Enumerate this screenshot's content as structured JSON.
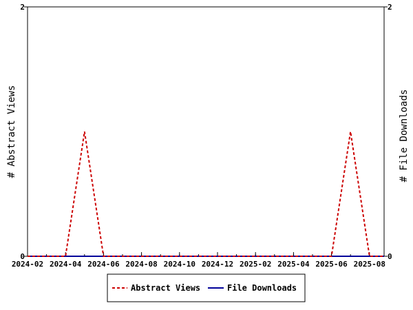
{
  "chart_data": {
    "type": "line",
    "x_ticks": [
      "2024-02",
      "2024-04",
      "2024-06",
      "2024-08",
      "2024-10",
      "2024-12",
      "2025-02",
      "2025-04",
      "2025-06",
      "2025-08"
    ],
    "x_range": [
      "2024-02",
      "2025-09"
    ],
    "ylabel_left": "# Abstract Views",
    "ylabel_right": "# File Downloads",
    "ylim_left": [
      0,
      2
    ],
    "ylim_right": [
      0,
      2
    ],
    "y_ticks_left": [
      "0",
      "2"
    ],
    "y_ticks_right": [
      "0",
      "2"
    ],
    "legend_position": "bottom",
    "series": [
      {
        "name": "Abstract Views",
        "color": "#cc0000",
        "style": "dashed",
        "axis": "left",
        "x": [
          "2024-02",
          "2024-04",
          "2024-05",
          "2024-06",
          "2025-06",
          "2025-07",
          "2025-08",
          "2025-09"
        ],
        "values": [
          0,
          0,
          1,
          0,
          0,
          1,
          0,
          0
        ]
      },
      {
        "name": "File Downloads",
        "color": "#000099",
        "style": "solid",
        "axis": "right",
        "x": [
          "2024-02",
          "2025-09"
        ],
        "values": [
          0,
          0
        ]
      }
    ]
  }
}
